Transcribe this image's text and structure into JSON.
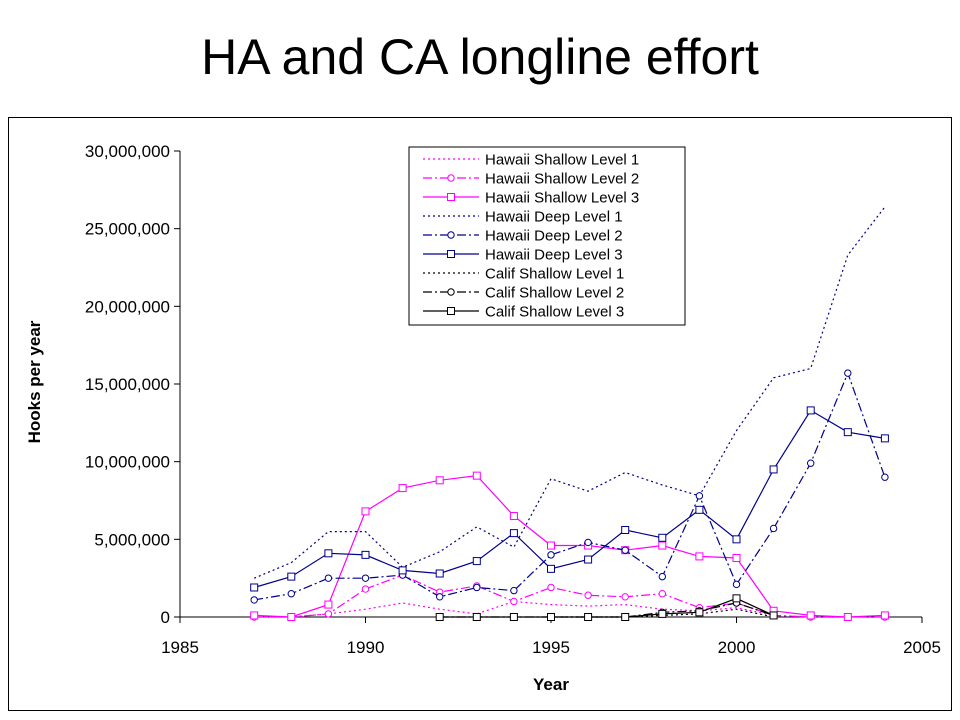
{
  "slide": {
    "title": "HA and CA longline effort"
  },
  "chart_data": {
    "type": "line",
    "title": "",
    "xlabel": "Year",
    "ylabel": "Hooks per year",
    "xlim": [
      1985,
      2005
    ],
    "ylim": [
      0,
      30000000
    ],
    "x_ticks": [
      "1985",
      "1990",
      "1995",
      "2000",
      "2005"
    ],
    "x_tick_values": [
      1985,
      1990,
      1995,
      2000,
      2005
    ],
    "y_ticks": [
      "0",
      "5,000,000",
      "10,000,000",
      "15,000,000",
      "20,000,000",
      "25,000,000",
      "30,000,000"
    ],
    "y_tick_values": [
      0,
      5000000,
      10000000,
      15000000,
      20000000,
      25000000,
      30000000
    ],
    "legend_position": "top-right",
    "grid": false,
    "series": [
      {
        "name": "Hawaii Shallow Level 1",
        "color": "#ff00ff",
        "dash": "dot",
        "marker": "none",
        "x": [
          1987,
          1988,
          1989,
          1990,
          1991,
          1992,
          1993,
          1994,
          1995,
          1996,
          1997,
          1998,
          1999,
          2000,
          2001,
          2002,
          2003,
          2004
        ],
        "y": [
          0,
          0,
          200000,
          500000,
          900000,
          500000,
          200000,
          1000000,
          800000,
          700000,
          800000,
          500000,
          400000,
          600000,
          100000,
          0,
          0,
          0
        ]
      },
      {
        "name": "Hawaii Shallow Level 2",
        "color": "#ff00ff",
        "dash": "dashdot",
        "marker": "circle",
        "x": [
          1987,
          1988,
          1989,
          1990,
          1991,
          1992,
          1993,
          1994,
          1995,
          1996,
          1997,
          1998,
          1999,
          2000,
          2001,
          2002,
          2003,
          2004
        ],
        "y": [
          0,
          0,
          200000,
          1800000,
          2700000,
          1600000,
          2000000,
          1000000,
          1900000,
          1400000,
          1300000,
          1500000,
          600000,
          900000,
          100000,
          0,
          0,
          0
        ]
      },
      {
        "name": "Hawaii Shallow Level 3",
        "color": "#ff00ff",
        "dash": "solid",
        "marker": "square",
        "x": [
          1987,
          1988,
          1989,
          1990,
          1991,
          1992,
          1993,
          1994,
          1995,
          1996,
          1997,
          1998,
          1999,
          2000,
          2001,
          2002,
          2003,
          2004
        ],
        "y": [
          100000,
          0,
          800000,
          6800000,
          8300000,
          8800000,
          9100000,
          6500000,
          4600000,
          4600000,
          4300000,
          4600000,
          3900000,
          3800000,
          400000,
          100000,
          0,
          100000
        ]
      },
      {
        "name": "Hawaii Deep Level 1",
        "color": "#00008b",
        "dash": "dot",
        "marker": "none",
        "x": [
          1987,
          1988,
          1989,
          1990,
          1991,
          1992,
          1993,
          1994,
          1995,
          1996,
          1997,
          1998,
          1999,
          2000,
          2001,
          2002,
          2003,
          2004
        ],
        "y": [
          2500000,
          3500000,
          5500000,
          5500000,
          3200000,
          4200000,
          5800000,
          4500000,
          8900000,
          8100000,
          9300000,
          8500000,
          7800000,
          12000000,
          15400000,
          16000000,
          23300000,
          26400000
        ]
      },
      {
        "name": "Hawaii Deep Level 2",
        "color": "#00008b",
        "dash": "dashdot",
        "marker": "circle",
        "x": [
          1987,
          1988,
          1989,
          1990,
          1991,
          1992,
          1993,
          1994,
          1995,
          1996,
          1997,
          1998,
          1999,
          2000,
          2001,
          2002,
          2003,
          2004
        ],
        "y": [
          1100000,
          1500000,
          2500000,
          2500000,
          2700000,
          1300000,
          1900000,
          1700000,
          4000000,
          4800000,
          4300000,
          2600000,
          7800000,
          2100000,
          5700000,
          9900000,
          15700000,
          9000000
        ]
      },
      {
        "name": "Hawaii Deep Level 3",
        "color": "#00008b",
        "dash": "solid",
        "marker": "square",
        "x": [
          1987,
          1988,
          1989,
          1990,
          1991,
          1992,
          1993,
          1994,
          1995,
          1996,
          1997,
          1998,
          1999,
          2000,
          2001,
          2002,
          2003,
          2004
        ],
        "y": [
          1900000,
          2600000,
          4100000,
          4000000,
          3000000,
          2800000,
          3600000,
          5400000,
          3100000,
          3700000,
          5600000,
          5100000,
          6900000,
          5000000,
          9500000,
          13300000,
          11900000,
          11500000
        ]
      },
      {
        "name": "Calif Shallow Level 1",
        "color": "#000000",
        "dash": "dot",
        "marker": "none",
        "x": [
          1995,
          1996,
          1997,
          1998,
          1999,
          2000,
          2001
        ],
        "y": [
          0,
          0,
          0,
          100000,
          200000,
          500000,
          0
        ]
      },
      {
        "name": "Calif Shallow Level 2",
        "color": "#000000",
        "dash": "dashdot",
        "marker": "circle",
        "x": [
          1992,
          1993,
          1994,
          1995,
          1996,
          1997,
          1998,
          1999,
          2000,
          2001
        ],
        "y": [
          0,
          0,
          0,
          0,
          0,
          0,
          300000,
          400000,
          900000,
          100000
        ]
      },
      {
        "name": "Calif Shallow Level 3",
        "color": "#000000",
        "dash": "solid",
        "marker": "square",
        "x": [
          1992,
          1993,
          1994,
          1995,
          1996,
          1997,
          1998,
          1999,
          2000,
          2001
        ],
        "y": [
          0,
          0,
          0,
          0,
          0,
          0,
          200000,
          300000,
          1200000,
          100000
        ]
      }
    ]
  }
}
